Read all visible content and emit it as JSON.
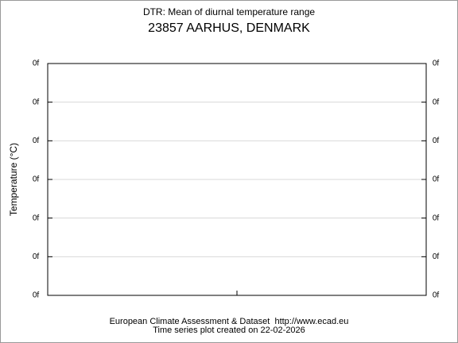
{
  "chart_data": {
    "type": "line",
    "title": "DTR: Mean of diurnal temperature range",
    "subtitle": "23857 AARHUS, DENMARK",
    "y_label": "Temperature (°C)",
    "series": [],
    "ylim": [
      0,
      6
    ],
    "yticks": [
      {
        "value": 0,
        "label": "0f"
      },
      {
        "value": 1,
        "label": "0f"
      },
      {
        "value": 2,
        "label": "0f"
      },
      {
        "value": 3,
        "label": "0f"
      },
      {
        "value": 4,
        "label": "0f"
      },
      {
        "value": 5,
        "label": "0f"
      },
      {
        "value": 6,
        "label": "0f"
      }
    ],
    "grid": true,
    "footer": [
      "European Climate Assessment & Dataset  http://www.ecad.eu",
      "Time series plot created on 22-02-2026"
    ]
  }
}
